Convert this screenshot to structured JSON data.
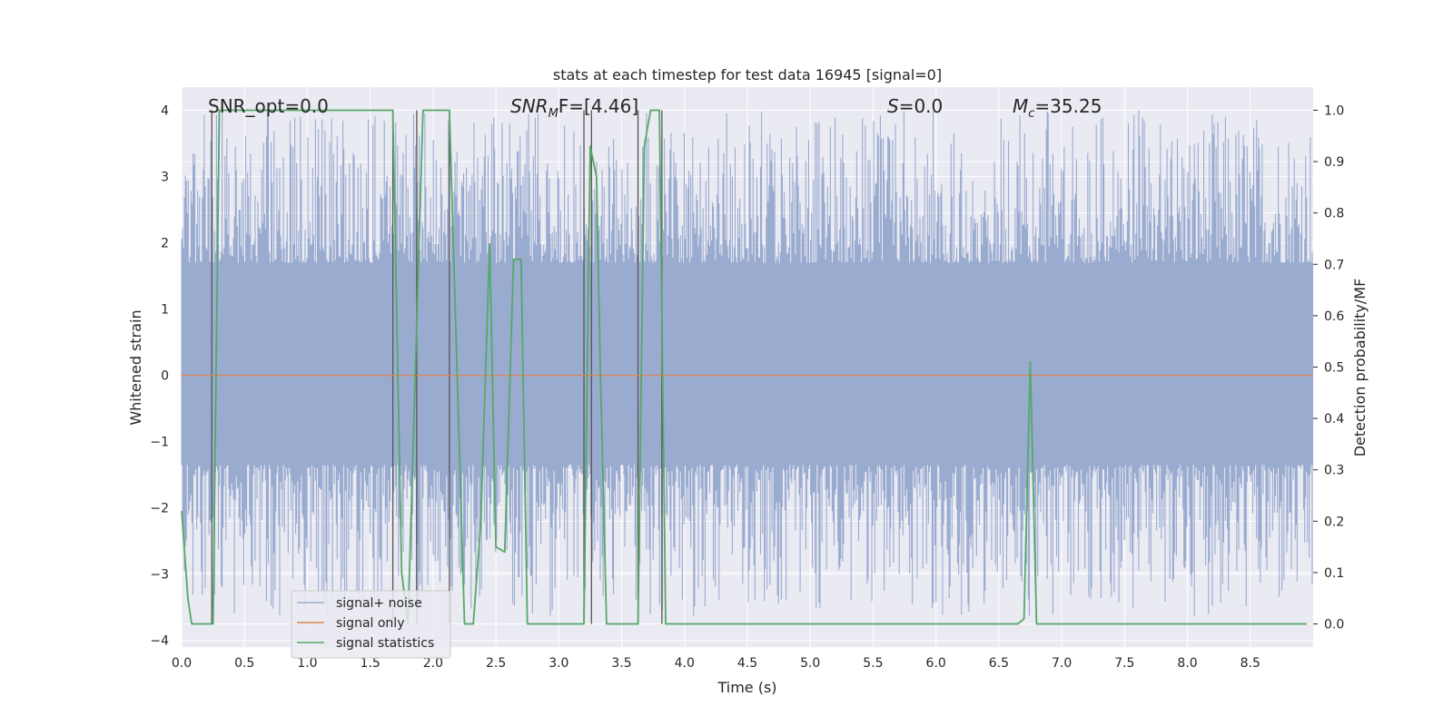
{
  "chart_data": {
    "type": "line",
    "title": "stats at each timestep for test data 16945 [signal=0]",
    "xlabel": "Time (s)",
    "ylabel_left": "Whitened strain",
    "ylabel_right": "Detection probability/MF",
    "xlim": [
      0,
      9.0
    ],
    "ylim_left": [
      -4.1,
      4.35
    ],
    "ylim_right": [
      -0.045,
      1.045
    ],
    "xticks": [
      0.0,
      0.5,
      1.0,
      1.5,
      2.0,
      2.5,
      3.0,
      3.5,
      4.0,
      4.5,
      5.0,
      5.5,
      6.0,
      6.5,
      7.0,
      7.5,
      8.0,
      8.5
    ],
    "xtick_labels": [
      "0.0",
      "0.5",
      "1.0",
      "1.5",
      "2.0",
      "2.5",
      "3.0",
      "3.5",
      "4.0",
      "4.5",
      "5.0",
      "5.5",
      "6.0",
      "6.5",
      "7.0",
      "7.5",
      "8.0",
      "8.5"
    ],
    "yticks_left": [
      4,
      3,
      2,
      1,
      0,
      -1,
      -2,
      -3,
      -4
    ],
    "ytick_labels_left": [
      "4",
      "3",
      "2",
      "1",
      "0",
      "−1",
      "−2",
      "−3",
      "−4"
    ],
    "yticks_right": [
      1.0,
      0.9,
      0.8,
      0.7,
      0.6,
      0.5,
      0.4,
      0.3,
      0.2,
      0.1,
      0.0
    ],
    "ytick_labels_right": [
      "1.0",
      "0.9",
      "0.8",
      "0.7",
      "0.6",
      "0.5",
      "0.4",
      "0.3",
      "0.2",
      "0.1",
      "0.0"
    ],
    "annotations": [
      {
        "main": "SNR_opt=0.0",
        "x": 0.19
      },
      {
        "main": "SNR",
        "sub": "M",
        "tail": "F=[4.46]",
        "x": 2.6
      },
      {
        "main": "S",
        "tail": "=0.0",
        "x": 5.6
      },
      {
        "main": "M",
        "sub": "c",
        "tail": "=35.25",
        "x": 6.6
      }
    ],
    "legend": {
      "placement": "lower-left",
      "entries": [
        "signal+ noise",
        "signal only",
        "signal statistics"
      ]
    },
    "colors": {
      "noise": "#9aabd0",
      "signal_only": "#dd8452",
      "statistics": "#55a868",
      "marker_lines": "#555555",
      "plot_bg": "#eaeaf2",
      "grid": "#ffffff"
    },
    "series": [
      {
        "name": "signal+ noise",
        "kind": "noise-band",
        "axis": "left",
        "band_upper": 1.7,
        "band_lower": -1.35,
        "spike_max": 4.0,
        "spike_min": -3.65
      },
      {
        "name": "signal only",
        "axis": "left",
        "x": [
          0.0,
          9.0
        ],
        "y": [
          0.0,
          0.0
        ]
      },
      {
        "name": "signal statistics",
        "axis": "right",
        "x": [
          0.0,
          0.05,
          0.08,
          0.25,
          0.3,
          1.68,
          1.75,
          1.8,
          1.86,
          1.92,
          2.13,
          2.25,
          2.32,
          2.38,
          2.45,
          2.5,
          2.57,
          2.64,
          2.7,
          2.75,
          2.9,
          3.2,
          3.25,
          3.3,
          3.33,
          3.38,
          3.63,
          3.68,
          3.73,
          3.8,
          3.85,
          3.95,
          6.65,
          6.7,
          6.75,
          6.8,
          6.85,
          8.95
        ],
        "y": [
          0.22,
          0.05,
          0.0,
          0.0,
          1.0,
          1.0,
          0.1,
          0.0,
          0.5,
          1.0,
          1.0,
          0.0,
          0.0,
          0.2,
          0.74,
          0.15,
          0.14,
          0.71,
          0.71,
          0.0,
          0.0,
          0.0,
          0.93,
          0.87,
          0.5,
          0.0,
          0.0,
          0.93,
          1.0,
          1.0,
          0.0,
          0.0,
          0.0,
          0.01,
          0.51,
          0.0,
          0.0,
          0.0
        ]
      }
    ],
    "marker_lines_x": [
      0.24,
      1.68,
      1.87,
      2.13,
      3.2,
      3.26,
      3.63,
      3.82
    ]
  }
}
